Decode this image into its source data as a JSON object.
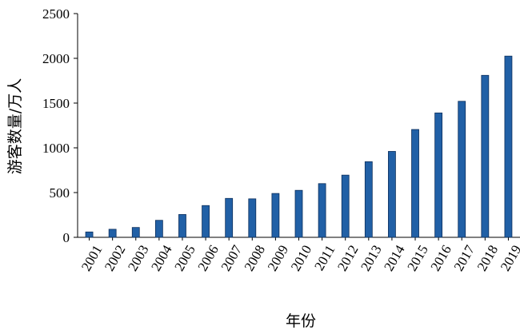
{
  "chart_data": {
    "type": "bar",
    "title": "",
    "xlabel": "年份",
    "ylabel": "游客数量/万人",
    "categories": [
      "2001",
      "2002",
      "2003",
      "2004",
      "2005",
      "2006",
      "2007",
      "2008",
      "2009",
      "2010",
      "2011",
      "2012",
      "2013",
      "2014",
      "2015",
      "2016",
      "2017",
      "2018",
      "2019"
    ],
    "values": [
      60,
      90,
      110,
      190,
      255,
      355,
      435,
      430,
      490,
      525,
      600,
      695,
      845,
      960,
      1205,
      1390,
      1520,
      1810,
      2025
    ],
    "ylim": [
      0,
      2500
    ],
    "yticks": [
      "0",
      "500",
      "1000",
      "1500",
      "2000",
      "2500"
    ],
    "grid": false,
    "legend": "none",
    "colors": {
      "bar_fill": "#2160a6",
      "bar_edge": "#0d2f5c",
      "axis": "#000000"
    }
  }
}
